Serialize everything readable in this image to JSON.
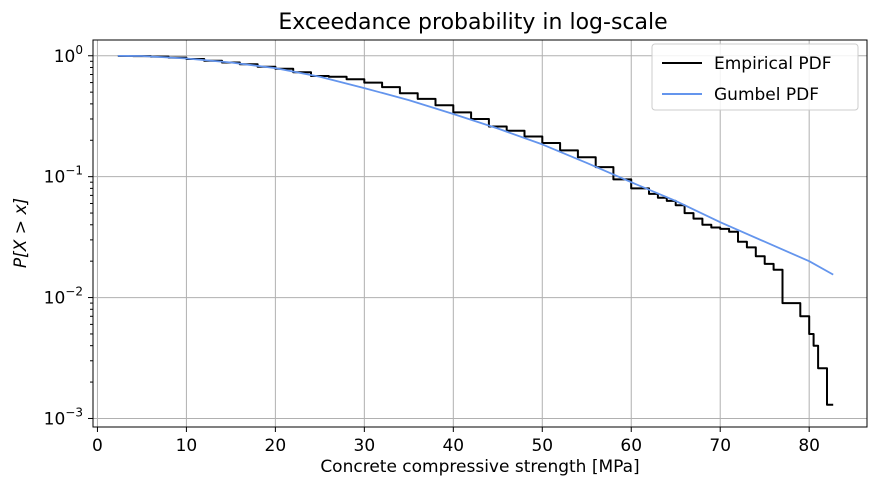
{
  "chart_data": {
    "type": "line",
    "title": "Exceedance probability in log-scale",
    "xlabel": "Concrete compressive strength [MPa]",
    "ylabel": "P[X > x]",
    "yscale": "log",
    "xlim": [
      -0.5,
      86.5
    ],
    "ylim": [
      0.00085,
      1.35
    ],
    "xticks": [
      0,
      10,
      20,
      30,
      40,
      50,
      60,
      70,
      80
    ],
    "xtick_labels": [
      "0",
      "10",
      "20",
      "30",
      "40",
      "50",
      "60",
      "70",
      "80"
    ],
    "yticks": [
      {
        "value": 1,
        "base": "10",
        "exp": "0"
      },
      {
        "value": 0.1,
        "base": "10",
        "exp": "−1"
      },
      {
        "value": 0.01,
        "base": "10",
        "exp": "−2"
      },
      {
        "value": 0.001,
        "base": "10",
        "exp": "−3"
      }
    ],
    "grid": true,
    "legend_position": "top-right",
    "colors": {
      "empirical": "#000000",
      "gumbel": "#6495ed",
      "grid": "#b0b0b0"
    },
    "series": [
      {
        "name": "Empirical PDF",
        "style": "step",
        "color": "#000000",
        "x": [
          2.3,
          4,
          6,
          8,
          10,
          12,
          14,
          16,
          18,
          20,
          22,
          24,
          26,
          28,
          30,
          32,
          34,
          36,
          38,
          40,
          42,
          44,
          46,
          48,
          50,
          52,
          54,
          56,
          58,
          60,
          62,
          63,
          64,
          65,
          66,
          67,
          68,
          69,
          70,
          71,
          72,
          73,
          74,
          75,
          76,
          77,
          78,
          79,
          80,
          80.5,
          81,
          82,
          82.7
        ],
        "y": [
          0.995,
          0.993,
          0.985,
          0.965,
          0.94,
          0.91,
          0.88,
          0.85,
          0.81,
          0.78,
          0.73,
          0.68,
          0.67,
          0.64,
          0.6,
          0.55,
          0.49,
          0.44,
          0.39,
          0.34,
          0.3,
          0.26,
          0.24,
          0.215,
          0.19,
          0.165,
          0.145,
          0.12,
          0.095,
          0.08,
          0.072,
          0.067,
          0.063,
          0.058,
          0.05,
          0.045,
          0.04,
          0.038,
          0.037,
          0.035,
          0.029,
          0.026,
          0.022,
          0.019,
          0.017,
          0.009,
          0.009,
          0.007,
          0.005,
          0.004,
          0.0026,
          0.0013,
          0.0013
        ]
      },
      {
        "name": "Gumbel PDF",
        "style": "line",
        "color": "#6495ed",
        "x": [
          2.3,
          5,
          10,
          15,
          20,
          25,
          30,
          35,
          40,
          45,
          50,
          55,
          60,
          65,
          70,
          75,
          80,
          82.7
        ],
        "y": [
          0.998,
          0.995,
          0.95,
          0.88,
          0.79,
          0.67,
          0.54,
          0.43,
          0.33,
          0.25,
          0.185,
          0.13,
          0.09,
          0.063,
          0.042,
          0.029,
          0.02,
          0.0155
        ]
      }
    ]
  }
}
